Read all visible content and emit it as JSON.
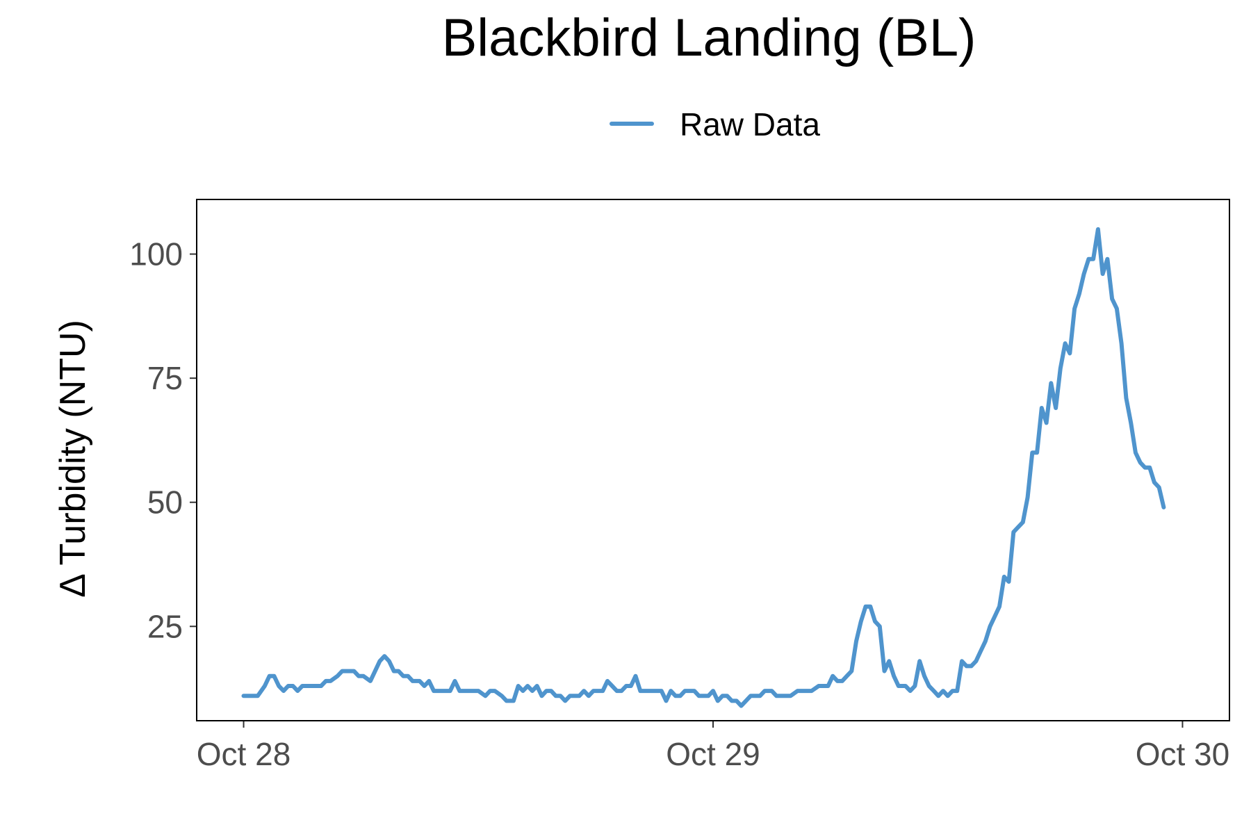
{
  "chart_data": {
    "type": "line",
    "title": "Blackbird Landing (BL)",
    "ylabel": "Δ Turbidity (NTU)",
    "xlabel": "",
    "x_tick_labels": [
      "Oct 28",
      "Oct 29",
      "Oct 30"
    ],
    "x_tick_values": [
      0,
      1,
      2
    ],
    "y_ticks": [
      25,
      50,
      75,
      100
    ],
    "ylim": [
      6,
      111
    ],
    "xlim": [
      -0.1,
      2.1
    ],
    "grid": false,
    "legend_position": "top",
    "series": [
      {
        "name": "Raw Data",
        "color": "#4f94cd",
        "points": [
          [
            0.0,
            11
          ],
          [
            0.03,
            11
          ],
          [
            0.045,
            13
          ],
          [
            0.055,
            15
          ],
          [
            0.065,
            15
          ],
          [
            0.075,
            13
          ],
          [
            0.085,
            12
          ],
          [
            0.095,
            13
          ],
          [
            0.105,
            13
          ],
          [
            0.115,
            12
          ],
          [
            0.125,
            13
          ],
          [
            0.145,
            13
          ],
          [
            0.165,
            13
          ],
          [
            0.175,
            14
          ],
          [
            0.185,
            14
          ],
          [
            0.2,
            15
          ],
          [
            0.21,
            16
          ],
          [
            0.225,
            16
          ],
          [
            0.235,
            16
          ],
          [
            0.245,
            15
          ],
          [
            0.255,
            15
          ],
          [
            0.27,
            14
          ],
          [
            0.28,
            16
          ],
          [
            0.29,
            18
          ],
          [
            0.3,
            19
          ],
          [
            0.31,
            18
          ],
          [
            0.32,
            16
          ],
          [
            0.33,
            16
          ],
          [
            0.34,
            15
          ],
          [
            0.35,
            15
          ],
          [
            0.36,
            14
          ],
          [
            0.375,
            14
          ],
          [
            0.385,
            13
          ],
          [
            0.395,
            14
          ],
          [
            0.405,
            12
          ],
          [
            0.44,
            12
          ],
          [
            0.45,
            14
          ],
          [
            0.46,
            12
          ],
          [
            0.5,
            12
          ],
          [
            0.515,
            11
          ],
          [
            0.525,
            12
          ],
          [
            0.535,
            12
          ],
          [
            0.55,
            11
          ],
          [
            0.56,
            10
          ],
          [
            0.575,
            10
          ],
          [
            0.585,
            13
          ],
          [
            0.595,
            12
          ],
          [
            0.605,
            13
          ],
          [
            0.615,
            12
          ],
          [
            0.625,
            13
          ],
          [
            0.635,
            11
          ],
          [
            0.645,
            12
          ],
          [
            0.655,
            12
          ],
          [
            0.665,
            11
          ],
          [
            0.675,
            11
          ],
          [
            0.685,
            10
          ],
          [
            0.695,
            11
          ],
          [
            0.705,
            11
          ],
          [
            0.715,
            11
          ],
          [
            0.725,
            12
          ],
          [
            0.735,
            11
          ],
          [
            0.745,
            12
          ],
          [
            0.765,
            12
          ],
          [
            0.775,
            14
          ],
          [
            0.785,
            13
          ],
          [
            0.795,
            12
          ],
          [
            0.805,
            12
          ],
          [
            0.815,
            13
          ],
          [
            0.825,
            13
          ],
          [
            0.835,
            15
          ],
          [
            0.845,
            12
          ],
          [
            0.89,
            12
          ],
          [
            0.9,
            10
          ],
          [
            0.91,
            12
          ],
          [
            0.92,
            11
          ],
          [
            0.93,
            11
          ],
          [
            0.94,
            12
          ],
          [
            0.96,
            12
          ],
          [
            0.97,
            11
          ],
          [
            0.99,
            11
          ],
          [
            1.0,
            12
          ],
          [
            1.01,
            10
          ],
          [
            1.02,
            11
          ],
          [
            1.03,
            11
          ],
          [
            1.04,
            10
          ],
          [
            1.05,
            10
          ],
          [
            1.06,
            9
          ],
          [
            1.07,
            10
          ],
          [
            1.08,
            11
          ],
          [
            1.1,
            11
          ],
          [
            1.11,
            12
          ],
          [
            1.125,
            12
          ],
          [
            1.135,
            11
          ],
          [
            1.165,
            11
          ],
          [
            1.18,
            12
          ],
          [
            1.21,
            12
          ],
          [
            1.225,
            13
          ],
          [
            1.245,
            13
          ],
          [
            1.255,
            15
          ],
          [
            1.265,
            14
          ],
          [
            1.275,
            14
          ],
          [
            1.285,
            15
          ],
          [
            1.295,
            16
          ],
          [
            1.305,
            22
          ],
          [
            1.315,
            26
          ],
          [
            1.325,
            29
          ],
          [
            1.335,
            29
          ],
          [
            1.345,
            26
          ],
          [
            1.355,
            25
          ],
          [
            1.365,
            16
          ],
          [
            1.375,
            18
          ],
          [
            1.385,
            15
          ],
          [
            1.395,
            13
          ],
          [
            1.41,
            13
          ],
          [
            1.42,
            12
          ],
          [
            1.43,
            13
          ],
          [
            1.44,
            18
          ],
          [
            1.45,
            15
          ],
          [
            1.46,
            13
          ],
          [
            1.47,
            12
          ],
          [
            1.48,
            11
          ],
          [
            1.49,
            12
          ],
          [
            1.5,
            11
          ],
          [
            1.51,
            12
          ],
          [
            1.52,
            12
          ],
          [
            1.53,
            18
          ],
          [
            1.54,
            17
          ],
          [
            1.55,
            17
          ],
          [
            1.56,
            18
          ],
          [
            1.57,
            20
          ],
          [
            1.58,
            22
          ],
          [
            1.59,
            25
          ],
          [
            1.6,
            27
          ],
          [
            1.61,
            29
          ],
          [
            1.62,
            35
          ],
          [
            1.63,
            34
          ],
          [
            1.64,
            44
          ],
          [
            1.65,
            45
          ],
          [
            1.66,
            46
          ],
          [
            1.67,
            51
          ],
          [
            1.68,
            60
          ],
          [
            1.69,
            60
          ],
          [
            1.7,
            69
          ],
          [
            1.71,
            66
          ],
          [
            1.72,
            74
          ],
          [
            1.73,
            69
          ],
          [
            1.74,
            77
          ],
          [
            1.75,
            82
          ],
          [
            1.76,
            80
          ],
          [
            1.77,
            89
          ],
          [
            1.78,
            92
          ],
          [
            1.79,
            96
          ],
          [
            1.8,
            99
          ],
          [
            1.81,
            99
          ],
          [
            1.82,
            105
          ],
          [
            1.83,
            96
          ],
          [
            1.84,
            99
          ],
          [
            1.85,
            91
          ],
          [
            1.86,
            89
          ],
          [
            1.87,
            82
          ],
          [
            1.88,
            71
          ],
          [
            1.89,
            66
          ],
          [
            1.9,
            60
          ],
          [
            1.91,
            58
          ],
          [
            1.92,
            57
          ],
          [
            1.93,
            57
          ],
          [
            1.94,
            54
          ],
          [
            1.95,
            53
          ],
          [
            1.96,
            49
          ]
        ]
      }
    ]
  }
}
